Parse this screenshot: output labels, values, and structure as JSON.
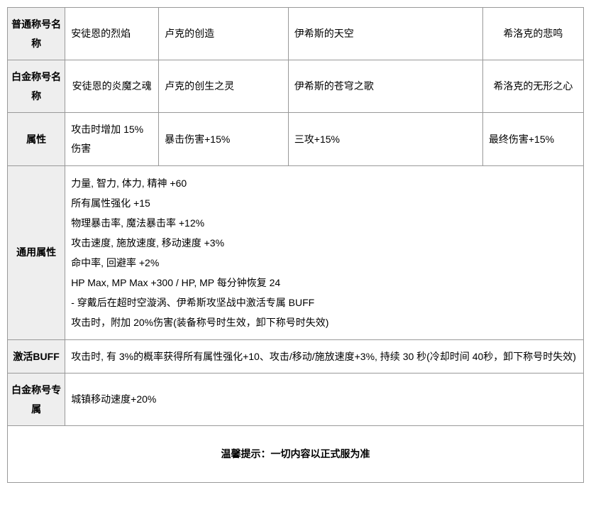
{
  "headers": {
    "normal_name": "普通称号名称",
    "platinum_name": "白金称号名称",
    "attribute": "属性",
    "common_attr": "通用属性",
    "activate_buff": "激活BUFF",
    "platinum_exclusive": "白金称号专属"
  },
  "columns": {
    "col1_normal": "安徒恩的烈焰",
    "col2_normal": "卢克的创造",
    "col3_normal": "伊希斯的天空",
    "col4_normal": "希洛克的悲鸣",
    "col1_platinum": "安徒恩的炎魔之魂",
    "col2_platinum": "卢克的创生之灵",
    "col3_platinum": "伊希斯的苍穹之歌",
    "col4_platinum": "希洛克的无形之心",
    "col1_attr": "攻击时增加 15%伤害",
    "col2_attr": "暴击伤害+15%",
    "col3_attr": "三攻+15%",
    "col4_attr": "最终伤害+15%"
  },
  "common_attributes": [
    "力量, 智力, 体力, 精神  +60",
    "所有属性强化  +15",
    "物理暴击率, 魔法暴击率  +12%",
    "攻击速度, 施放速度, 移动速度  +3%",
    "命中率, 回避率  +2%",
    "HP Max, MP Max +300 / HP, MP 每分钟恢复 24",
    "- 穿戴后在超时空漩涡、伊希斯攻坚战中激活专属 BUFF",
    "攻击时，附加 20%伤害(装备称号时生效，卸下称号时失效)"
  ],
  "activate_buff_text": "攻击时, 有 3%的概率获得所有属性强化+10、攻击/移动/施放速度+3%, 持续 30 秒(冷却时间 40秒，卸下称号时失效)",
  "platinum_exclusive_text": "城镇移动速度+20%",
  "footer": "温馨提示：一切内容以正式服为准",
  "colors": {
    "border": "#999999",
    "header_bg": "#eeeeee",
    "text": "#000000",
    "background": "#ffffff"
  },
  "column_widths": {
    "header_col": 80,
    "col1": 130,
    "col2": 180,
    "col3": 270,
    "col4": 140
  }
}
